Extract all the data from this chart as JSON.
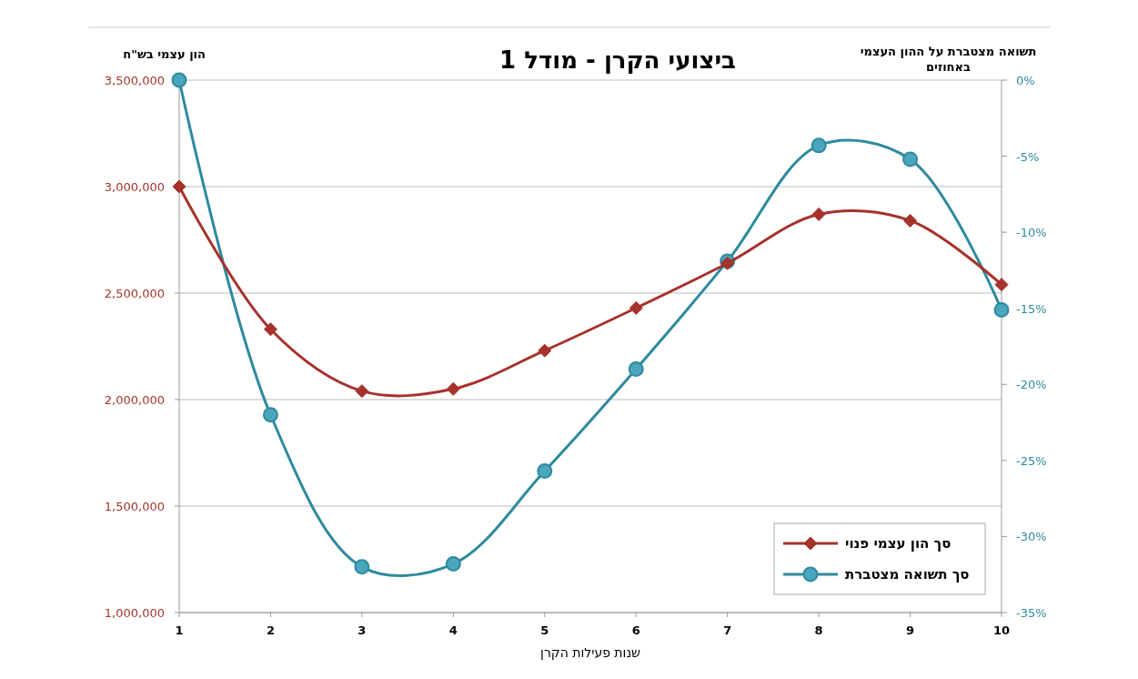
{
  "chart_data": {
    "type": "line",
    "title": "ביצועי הקרן - מודל 1",
    "xlabel": "שנות פעילות הקרן",
    "ylabel": "הון עצמי בש\"ח",
    "y2label": "תשואה מצטברת על ההון העצמי באחוזים",
    "x": [
      1,
      2,
      3,
      4,
      5,
      6,
      7,
      8,
      9,
      10
    ],
    "xlim": [
      1,
      10
    ],
    "xticks": [
      1,
      2,
      3,
      4,
      5,
      6,
      7,
      8,
      9,
      10
    ],
    "ylim": [
      1000000,
      3500000
    ],
    "yticks": [
      {
        "value": 1000000,
        "label": "1,000,000"
      },
      {
        "value": 1500000,
        "label": "1,500,000"
      },
      {
        "value": 2000000,
        "label": "2,000,000"
      },
      {
        "value": 2500000,
        "label": "2,500,000"
      },
      {
        "value": 3000000,
        "label": "3,000,000"
      },
      {
        "value": 3500000,
        "label": "3,500,000"
      }
    ],
    "y2lim": [
      -35,
      0
    ],
    "y2ticks": [
      {
        "value": -35,
        "label": "-35%"
      },
      {
        "value": -30,
        "label": "-30%"
      },
      {
        "value": -25,
        "label": "-25%"
      },
      {
        "value": -20,
        "label": "-20%"
      },
      {
        "value": -15,
        "label": "-15%"
      },
      {
        "value": -10,
        "label": "-10%"
      },
      {
        "value": -5,
        "label": "-5%"
      },
      {
        "value": 0,
        "label": "0%"
      }
    ],
    "grid": "y",
    "legend": "bottom right",
    "series": [
      {
        "name": "סך הון עצמי פנוי",
        "color": "#a5332b",
        "marker": "diamond",
        "values": [
          3000000,
          2330000,
          2040000,
          2050000,
          2230000,
          2430000,
          2640000,
          2870000,
          2840000,
          2540000
        ]
      },
      {
        "name": "סך תשואה מצטברת",
        "color": "#2e8a9e",
        "marker": "circle",
        "axis": "y2",
        "values": [
          0,
          -22,
          -32,
          -31.8,
          -25.7,
          -19,
          -11.9,
          -4.3,
          -5.2,
          -15.1
        ]
      }
    ]
  }
}
